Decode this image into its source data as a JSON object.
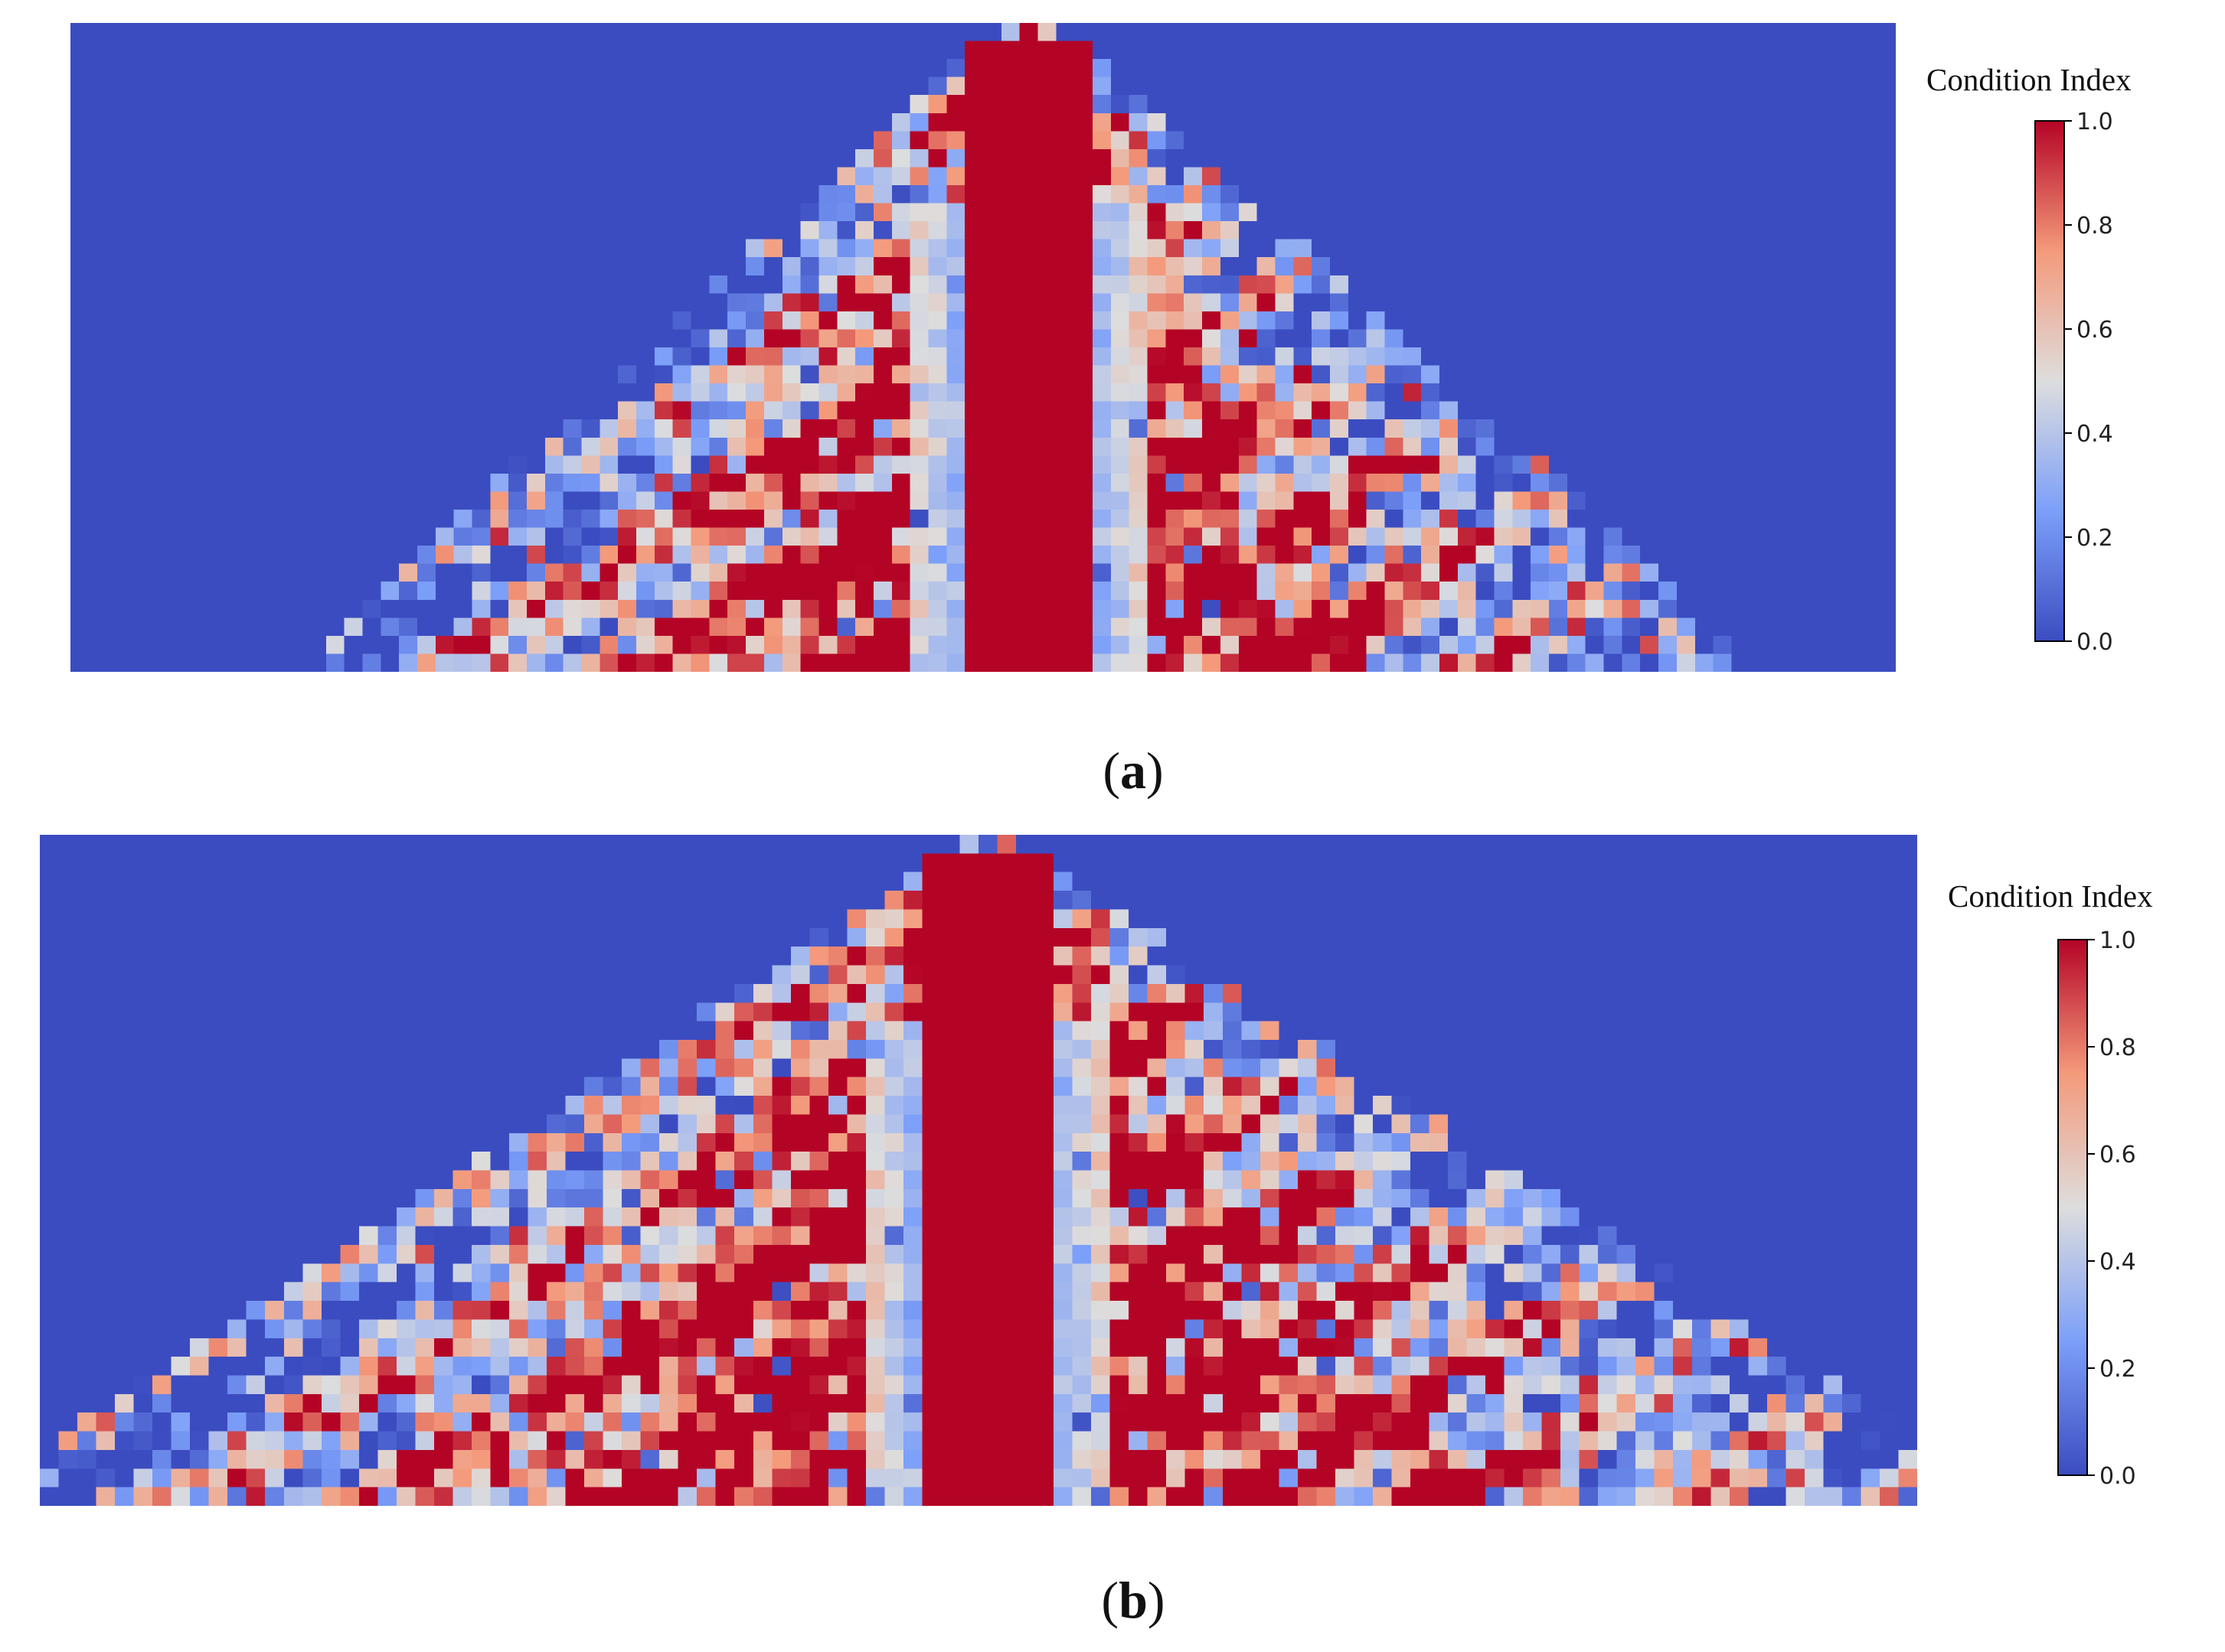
{
  "panels": [
    {
      "label": "a",
      "chart_data": {
        "type": "heatmap",
        "colormap": "coolwarm",
        "colorbar": {
          "label": "Condition Index",
          "range": [
            0.0,
            1.0
          ],
          "ticks": [
            "0.0",
            "0.2",
            "0.4",
            "0.6",
            "0.8",
            "1.0"
          ]
        },
        "grid": false,
        "description_of_values": "Condition index per element of an arch-shaped region; high values (1.0) concentrated along the central vertical core and radiating diagonal bands; background outside the structure is 0.0",
        "approx_grid": {
          "cols": 100,
          "rows": 36
        },
        "pattern": {
          "apex_col": 52,
          "core_halfwidth_cols": 3,
          "spread": 0.38,
          "seed": 7
        }
      }
    },
    {
      "label": "b",
      "chart_data": {
        "type": "heatmap",
        "colormap": "coolwarm",
        "colorbar": {
          "label": "Condition Index",
          "range": [
            0.0,
            1.0
          ],
          "ticks": [
            "0.0",
            "0.2",
            "0.4",
            "0.6",
            "0.8",
            "1.0"
          ]
        },
        "grid": false,
        "description_of_values": "Condition index per element; broad symmetric triangular region of high values (1.0) with a central vertical core and diagonal bands, background 0.0",
        "approx_grid": {
          "cols": 100,
          "rows": 36
        },
        "pattern": {
          "apex_col": 50,
          "core_halfwidth_cols": 3,
          "spread": 0.52,
          "seed": 13
        }
      }
    }
  ],
  "colors": {
    "low": "#3b4cc0",
    "mid": "#dddddd",
    "high": "#b40426"
  }
}
